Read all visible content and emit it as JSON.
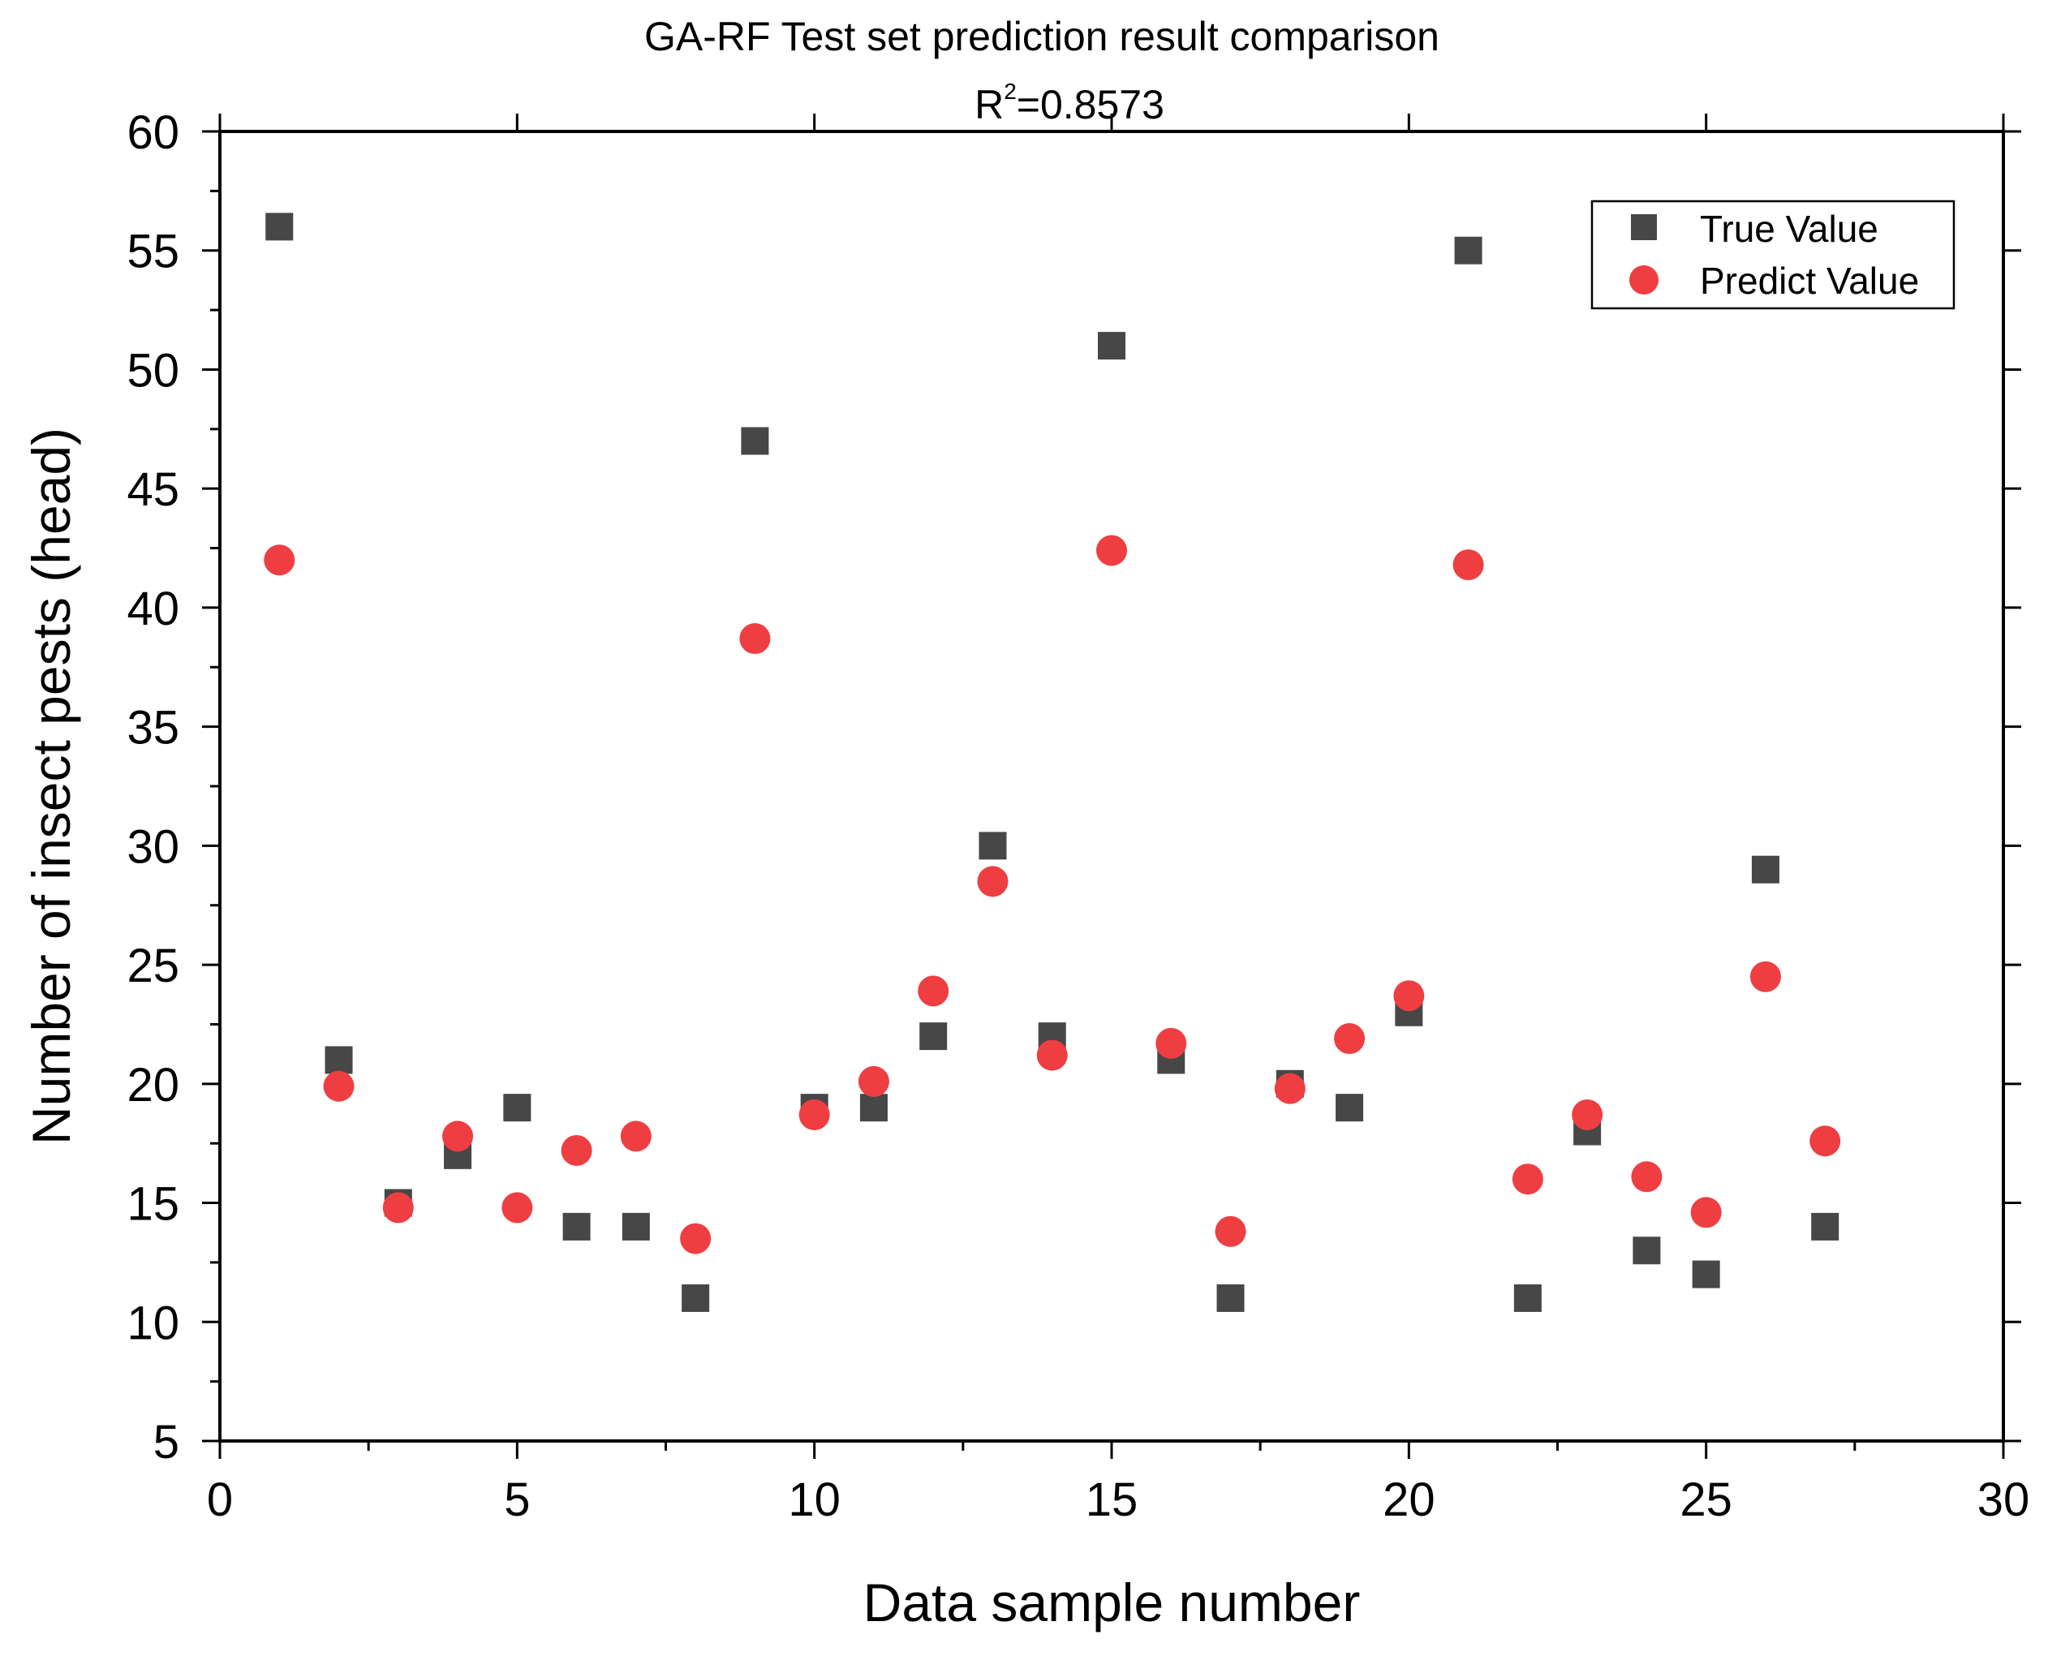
{
  "chart_data": {
    "type": "scatter",
    "title": "GA-RF Test set prediction result comparison",
    "subtitle": {
      "base": "R",
      "superscript": "2",
      "value": "=0.8573"
    },
    "xlabel": "Data sample number",
    "ylabel": "Number of insect pests (head)",
    "xlim": [
      0,
      30
    ],
    "ylim": [
      5,
      60
    ],
    "x_ticks": [
      0,
      5,
      10,
      15,
      20,
      25,
      30
    ],
    "y_ticks": [
      5,
      10,
      15,
      20,
      25,
      30,
      35,
      40,
      45,
      50,
      55,
      60
    ],
    "x_tick_labels": [
      "0",
      "5",
      "10",
      "15",
      "20",
      "25",
      "30"
    ],
    "y_tick_labels": [
      "5",
      "10",
      "15",
      "20",
      "25",
      "30",
      "35",
      "40",
      "45",
      "50",
      "55",
      "60"
    ],
    "legend_position": "top-right",
    "x": [
      1,
      2,
      3,
      4,
      5,
      6,
      7,
      8,
      9,
      10,
      11,
      12,
      13,
      14,
      15,
      16,
      17,
      18,
      19,
      20,
      21,
      22,
      23,
      24,
      25,
      26,
      27
    ],
    "series": [
      {
        "name": "True Value",
        "marker": "square",
        "color": "#474747",
        "values": [
          56,
          21,
          15,
          17,
          19,
          14,
          14,
          11,
          47,
          19,
          19,
          22,
          30,
          22,
          51,
          21,
          11,
          20,
          19,
          23,
          55,
          11,
          18,
          13,
          12,
          29,
          14
        ]
      },
      {
        "name": "Predict Value",
        "marker": "circle",
        "color": "#ef3e42",
        "values": [
          42,
          19.9,
          14.8,
          17.8,
          14.8,
          17.2,
          17.8,
          13.5,
          38.7,
          18.7,
          20.1,
          23.9,
          28.5,
          21.2,
          42.4,
          21.7,
          13.8,
          19.8,
          21.9,
          23.7,
          41.8,
          16,
          18.7,
          16.1,
          14.6,
          24.5,
          17.6
        ]
      }
    ]
  }
}
